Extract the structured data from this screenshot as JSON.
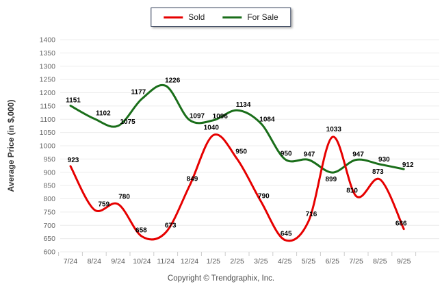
{
  "legend": {
    "items": [
      {
        "label": "Sold",
        "color": "#e60000"
      },
      {
        "label": "For Sale",
        "color": "#1a6e1a"
      }
    ]
  },
  "chart_data": {
    "type": "line",
    "title": "",
    "categories": [
      "7/24",
      "8/24",
      "9/24",
      "10/24",
      "11/24",
      "12/24",
      "1/25",
      "2/25",
      "3/25",
      "4/25",
      "5/25",
      "6/25",
      "7/25",
      "8/25",
      "9/25"
    ],
    "series": [
      {
        "name": "Sold",
        "color": "#e60000",
        "values": [
          923,
          759,
          780,
          658,
          673,
          849,
          1040,
          950,
          790,
          645,
          716,
          1033,
          810,
          873,
          686
        ]
      },
      {
        "name": "For Sale",
        "color": "#1a6e1a",
        "values": [
          1151,
          1102,
          1075,
          1177,
          1226,
          1097,
          1096,
          1134,
          1084,
          950,
          947,
          899,
          947,
          930,
          912
        ]
      }
    ],
    "xlabel": "",
    "ylabel": "Average Price (in $,000)",
    "ylim": [
      600,
      1400
    ],
    "ytick_step": 50,
    "grid": "horizontal-only",
    "legend_position": "top-center",
    "line_style": "smooth"
  },
  "footer": {
    "copyright": "Copyright © Trendgraphix, Inc."
  }
}
